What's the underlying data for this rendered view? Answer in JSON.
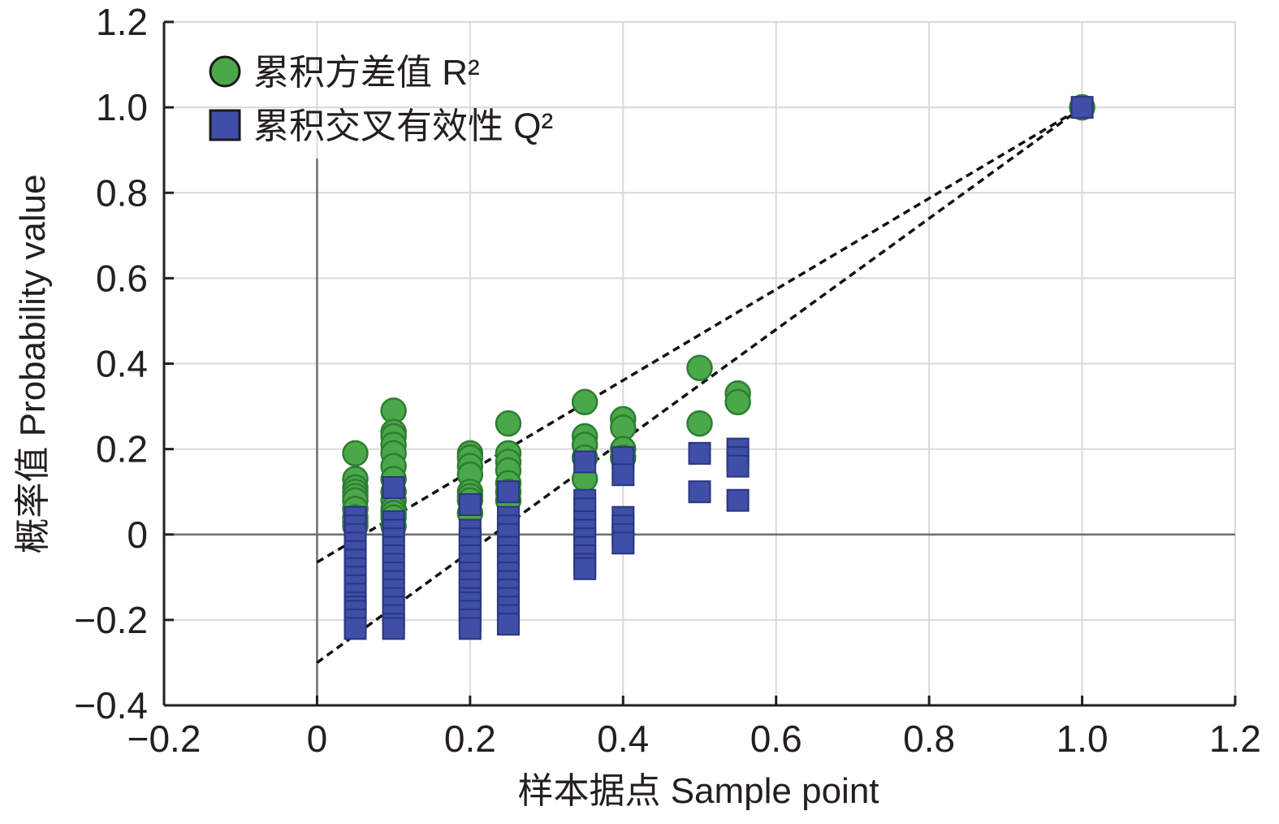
{
  "chart_data": {
    "type": "scatter",
    "title": "",
    "xlabel": "样本据点 Sample point",
    "ylabel": "概率值 Probability value",
    "xlim": [
      -0.2,
      1.2
    ],
    "ylim": [
      -0.4,
      1.2
    ],
    "x_ticks": [
      -0.2,
      0,
      0.2,
      0.4,
      0.6,
      0.8,
      1.0,
      1.2
    ],
    "x_tick_labels": [
      "−0.2",
      "0",
      "0.2",
      "0.4",
      "0.6",
      "0.8",
      "1.0",
      "1.2"
    ],
    "y_ticks": [
      -0.4,
      -0.2,
      0,
      0.2,
      0.4,
      0.6,
      0.8,
      1.0,
      1.2
    ],
    "y_tick_labels": [
      "−0.4",
      "−0.2",
      "0",
      "0.2",
      "0.4",
      "0.6",
      "0.8",
      "1.0",
      "1.2"
    ],
    "grid": true,
    "legend_position": "top-left",
    "colors": {
      "r2": "#4aa84a",
      "r2_edge": "#2e7d32",
      "q2": "#3f4fa8",
      "q2_edge": "#2b3580",
      "axis": "#231f20",
      "grid": "#d9d9d9",
      "zero_line": "#6d6e71"
    },
    "series": [
      {
        "name": "累积方差值 R²",
        "marker": "circle",
        "points": [
          [
            0.05,
            0.19
          ],
          [
            0.05,
            0.13
          ],
          [
            0.05,
            0.11
          ],
          [
            0.05,
            0.1
          ],
          [
            0.05,
            0.09
          ],
          [
            0.05,
            0.08
          ],
          [
            0.05,
            0.06
          ],
          [
            0.05,
            0.04
          ],
          [
            0.05,
            0.03
          ],
          [
            0.05,
            0.02
          ],
          [
            0.1,
            0.29
          ],
          [
            0.1,
            0.24
          ],
          [
            0.1,
            0.23
          ],
          [
            0.1,
            0.21
          ],
          [
            0.1,
            0.19
          ],
          [
            0.1,
            0.16
          ],
          [
            0.1,
            0.13
          ],
          [
            0.1,
            0.1
          ],
          [
            0.1,
            0.08
          ],
          [
            0.1,
            0.06
          ],
          [
            0.1,
            0.05
          ],
          [
            0.1,
            0.04
          ],
          [
            0.1,
            0.02
          ],
          [
            0.2,
            0.19
          ],
          [
            0.2,
            0.18
          ],
          [
            0.2,
            0.16
          ],
          [
            0.2,
            0.14
          ],
          [
            0.2,
            0.1
          ],
          [
            0.2,
            0.09
          ],
          [
            0.2,
            0.08
          ],
          [
            0.2,
            0.05
          ],
          [
            0.25,
            0.26
          ],
          [
            0.25,
            0.19
          ],
          [
            0.25,
            0.17
          ],
          [
            0.25,
            0.15
          ],
          [
            0.25,
            0.12
          ],
          [
            0.25,
            0.1
          ],
          [
            0.25,
            0.08
          ],
          [
            0.35,
            0.31
          ],
          [
            0.35,
            0.23
          ],
          [
            0.35,
            0.21
          ],
          [
            0.35,
            0.18
          ],
          [
            0.35,
            0.13
          ],
          [
            0.4,
            0.27
          ],
          [
            0.4,
            0.25
          ],
          [
            0.4,
            0.2
          ],
          [
            0.4,
            0.18
          ],
          [
            0.5,
            0.39
          ],
          [
            0.5,
            0.26
          ],
          [
            0.55,
            0.33
          ],
          [
            0.55,
            0.31
          ],
          [
            1.0,
            1.0
          ]
        ]
      },
      {
        "name": "累积交叉有效性 Q²",
        "marker": "square",
        "points": [
          [
            0.05,
            0.04
          ],
          [
            0.05,
            0.02
          ],
          [
            0.05,
            0.0
          ],
          [
            0.05,
            -0.02
          ],
          [
            0.05,
            -0.04
          ],
          [
            0.05,
            -0.06
          ],
          [
            0.05,
            -0.08
          ],
          [
            0.05,
            -0.1
          ],
          [
            0.05,
            -0.12
          ],
          [
            0.05,
            -0.14
          ],
          [
            0.05,
            -0.16
          ],
          [
            0.05,
            -0.17
          ],
          [
            0.05,
            -0.18
          ],
          [
            0.05,
            -0.2
          ],
          [
            0.05,
            -0.22
          ],
          [
            0.1,
            0.11
          ],
          [
            0.1,
            0.03
          ],
          [
            0.1,
            0.01
          ],
          [
            0.1,
            -0.01
          ],
          [
            0.1,
            -0.03
          ],
          [
            0.1,
            -0.05
          ],
          [
            0.1,
            -0.07
          ],
          [
            0.1,
            -0.09
          ],
          [
            0.1,
            -0.11
          ],
          [
            0.1,
            -0.13
          ],
          [
            0.1,
            -0.15
          ],
          [
            0.1,
            -0.17
          ],
          [
            0.1,
            -0.19
          ],
          [
            0.1,
            -0.21
          ],
          [
            0.1,
            -0.22
          ],
          [
            0.2,
            0.07
          ],
          [
            0.2,
            0.01
          ],
          [
            0.2,
            -0.01
          ],
          [
            0.2,
            -0.03
          ],
          [
            0.2,
            -0.05
          ],
          [
            0.2,
            -0.07
          ],
          [
            0.2,
            -0.09
          ],
          [
            0.2,
            -0.11
          ],
          [
            0.2,
            -0.13
          ],
          [
            0.2,
            -0.15
          ],
          [
            0.2,
            -0.16
          ],
          [
            0.2,
            -0.18
          ],
          [
            0.2,
            -0.2
          ],
          [
            0.2,
            -0.22
          ],
          [
            0.25,
            0.1
          ],
          [
            0.25,
            0.04
          ],
          [
            0.25,
            0.02
          ],
          [
            0.25,
            0.0
          ],
          [
            0.25,
            -0.03
          ],
          [
            0.25,
            -0.05
          ],
          [
            0.25,
            -0.07
          ],
          [
            0.25,
            -0.09
          ],
          [
            0.25,
            -0.11
          ],
          [
            0.25,
            -0.13
          ],
          [
            0.25,
            -0.15
          ],
          [
            0.25,
            -0.17
          ],
          [
            0.25,
            -0.19
          ],
          [
            0.25,
            -0.21
          ],
          [
            0.35,
            0.17
          ],
          [
            0.35,
            0.08
          ],
          [
            0.35,
            0.06
          ],
          [
            0.35,
            0.03
          ],
          [
            0.35,
            0.01
          ],
          [
            0.35,
            -0.01
          ],
          [
            0.35,
            -0.03
          ],
          [
            0.35,
            -0.05
          ],
          [
            0.35,
            -0.07
          ],
          [
            0.35,
            -0.08
          ],
          [
            0.4,
            0.18
          ],
          [
            0.4,
            0.14
          ],
          [
            0.4,
            0.04
          ],
          [
            0.4,
            0.02
          ],
          [
            0.4,
            0.0
          ],
          [
            0.4,
            -0.02
          ],
          [
            0.5,
            0.19
          ],
          [
            0.5,
            0.1
          ],
          [
            0.55,
            0.2
          ],
          [
            0.55,
            0.18
          ],
          [
            0.55,
            0.16
          ],
          [
            0.55,
            0.08
          ],
          [
            1.0,
            1.0
          ]
        ]
      }
    ],
    "trend_lines": [
      {
        "series": "累积方差值 R²",
        "from": [
          0,
          -0.065
        ],
        "to": [
          1.0,
          1.0
        ],
        "style": "dashed"
      },
      {
        "series": "累积交叉有效性 Q²",
        "from": [
          0,
          -0.3
        ],
        "to": [
          1.0,
          1.0
        ],
        "style": "dashed"
      }
    ]
  }
}
